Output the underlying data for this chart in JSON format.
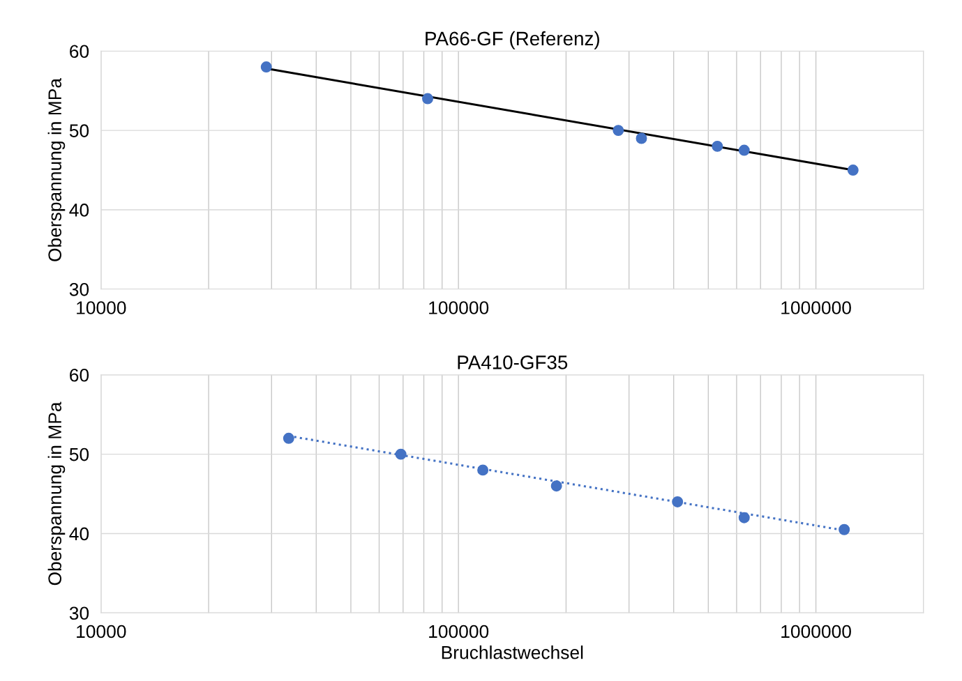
{
  "chart_data": [
    {
      "type": "scatter",
      "title": "PA66-GF (Referenz)",
      "ylabel": "Oberspannung in MPa",
      "log": "x",
      "xlim": [
        10000,
        2000000
      ],
      "xticks": [
        10000,
        100000,
        1000000
      ],
      "ylim": [
        30,
        60
      ],
      "yticks": [
        30,
        40,
        50,
        60
      ],
      "grid": true,
      "series": [
        {
          "color": "#4472c4",
          "marker": "circle",
          "x": [
            29000,
            82000,
            280000,
            325000,
            530000,
            630000,
            1270000
          ],
          "values": [
            58,
            54,
            50,
            49,
            48,
            47.5,
            45
          ]
        },
        {
          "type": "line",
          "color": "#000000",
          "marker": "none",
          "line_style": "solid",
          "x": [
            29000,
            1270000
          ],
          "values": [
            57.8,
            45
          ]
        }
      ]
    },
    {
      "type": "scatter",
      "title": "PA410-GF35",
      "xlabel": "Bruchlastwechsel",
      "ylabel": "Oberspannung in MPa",
      "log": "x",
      "xlim": [
        10000,
        2000000
      ],
      "xticks": [
        10000,
        100000,
        1000000
      ],
      "ylim": [
        30,
        60
      ],
      "yticks": [
        30,
        40,
        50,
        60
      ],
      "grid": true,
      "series": [
        {
          "color": "#4472c4",
          "marker": "circle",
          "x": [
            33500,
            69000,
            117000,
            188000,
            410000,
            630000,
            1200000
          ],
          "values": [
            52,
            50,
            48,
            46,
            44,
            42,
            40.5
          ]
        },
        {
          "type": "line",
          "color": "#4472c4",
          "marker": "none",
          "line_style": "dotted",
          "x": [
            33500,
            1200000
          ],
          "values": [
            52.3,
            40.4
          ]
        }
      ]
    }
  ]
}
